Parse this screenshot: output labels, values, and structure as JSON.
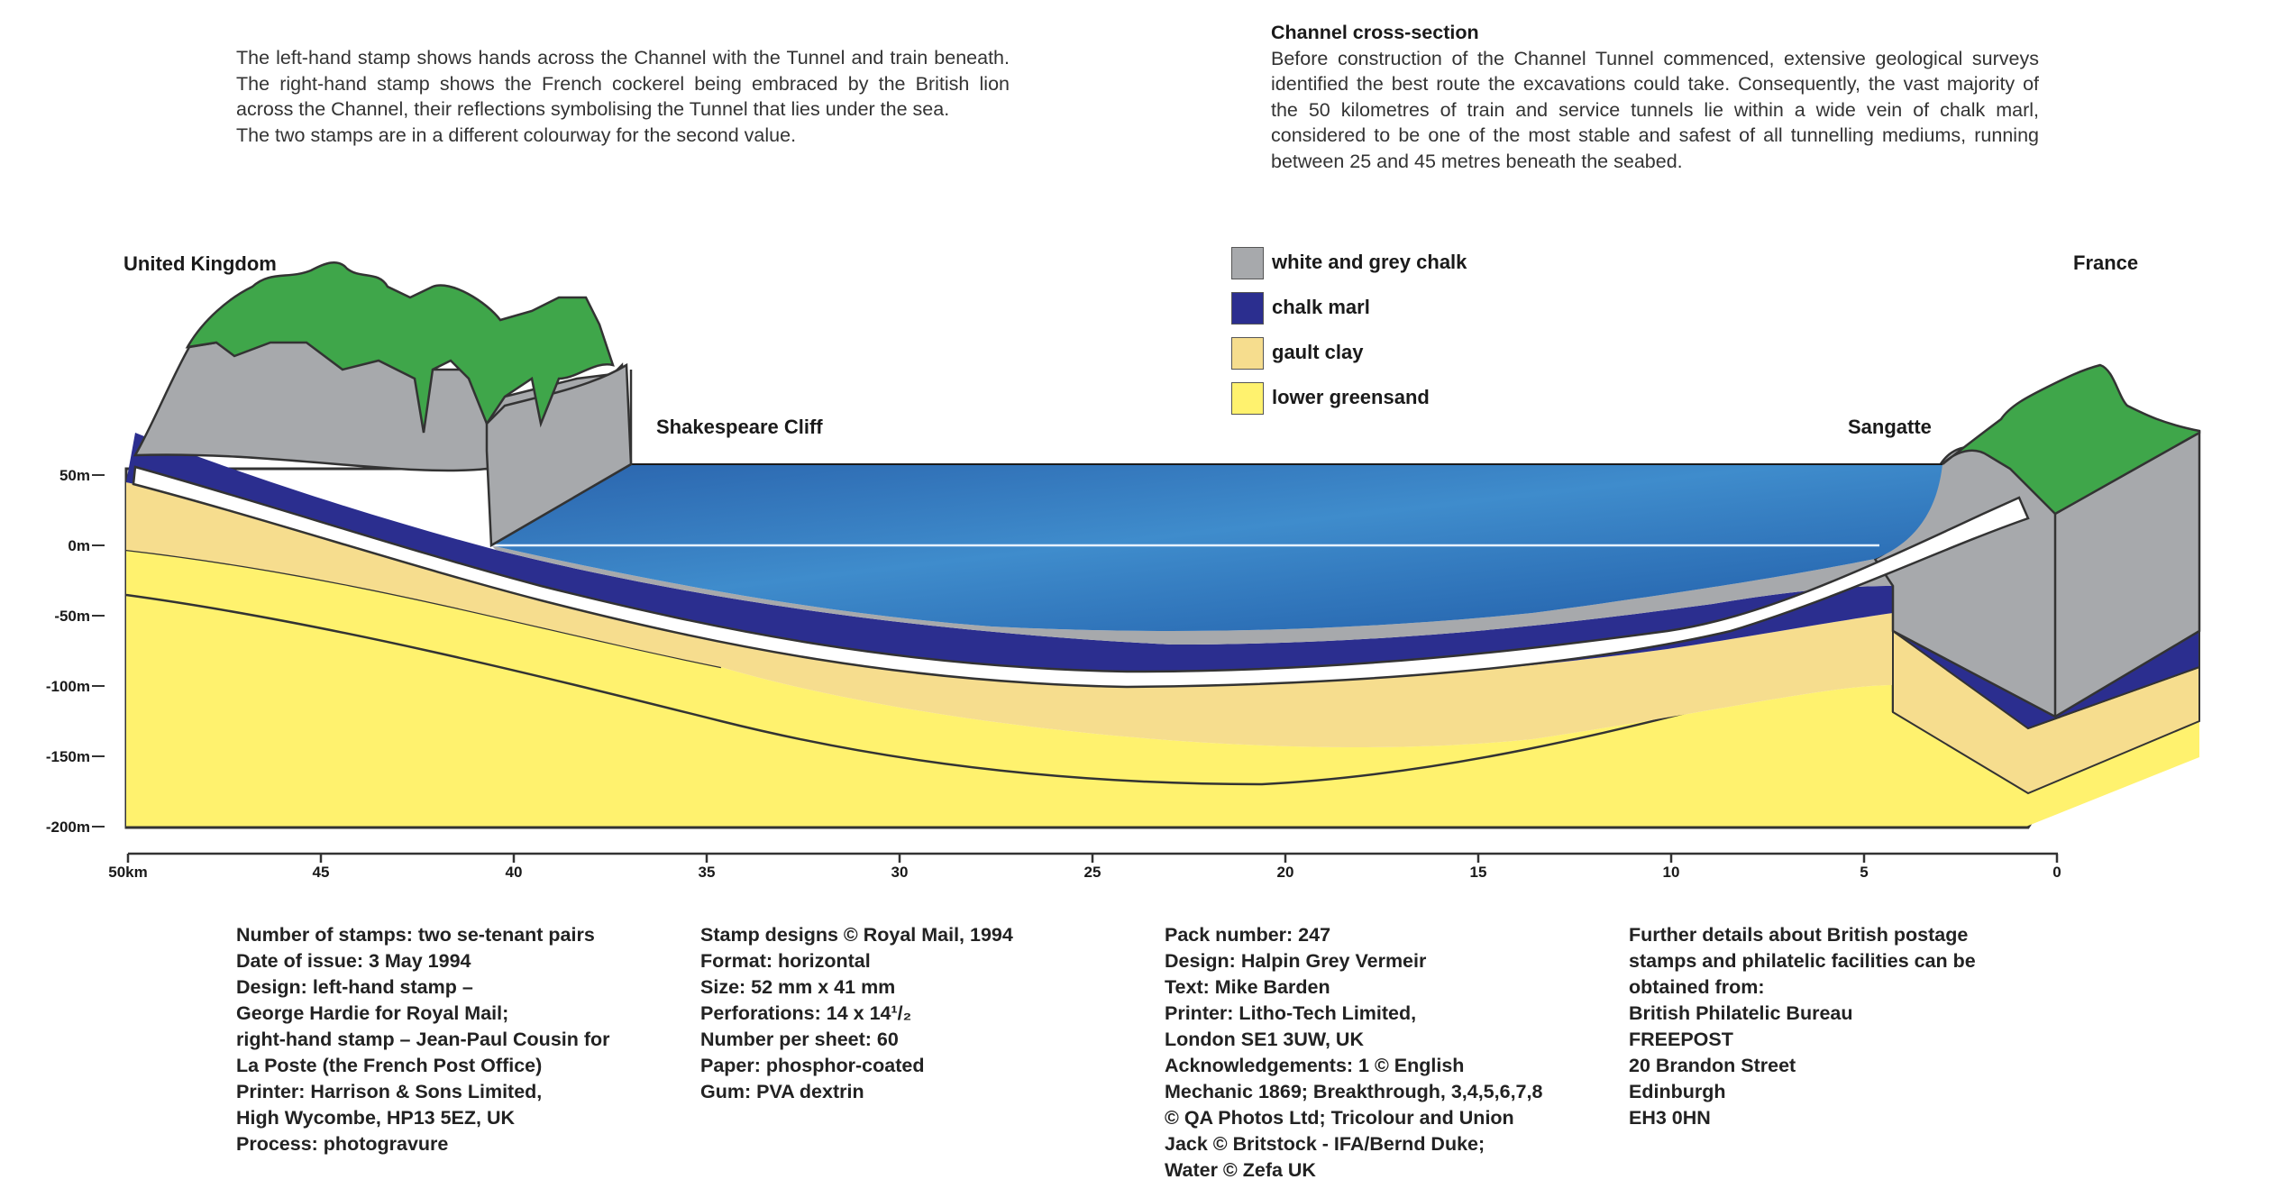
{
  "intro_left": {
    "lines": [
      "The left-hand stamp shows hands across the Channel with the Tunnel and train beneath. The right-hand stamp shows the French cockerel being embraced by the British lion across the Channel, their reflections symbolising the Tunnel that lies under the sea.",
      "The two stamps are in a different colourway for the second value."
    ]
  },
  "intro_right": {
    "heading": "Channel cross-section",
    "body": "Before construction of the Channel Tunnel commenced, extensive geological surveys identified the best route the excavations could take. Consequently, the vast majority of the 50 kilometres of train and service tunnels lie within a wide vein of chalk marl, considered to be one of the most stable and safest of all tunnelling mediums, running between 25 and 45 metres beneath the seabed."
  },
  "places": {
    "uk": "United Kingdom",
    "france": "France",
    "shakespeare": "Shakespeare Cliff",
    "sangatte": "Sangatte"
  },
  "legend": [
    {
      "label": "white and grey chalk",
      "color": "#a7a9ac"
    },
    {
      "label": "chalk marl",
      "color": "#2b2e8f"
    },
    {
      "label": "gault clay",
      "color": "#f6dd8e"
    },
    {
      "label": "lower greensand",
      "color": "#fff26e"
    }
  ],
  "depth_axis": {
    "labels": [
      "50m",
      "0m",
      "-50m",
      "-100m",
      "-150m",
      "-200m"
    ]
  },
  "distance_axis": {
    "labels": [
      "50km",
      "45",
      "40",
      "35",
      "30",
      "25",
      "20",
      "15",
      "10",
      "5",
      "0"
    ]
  },
  "colors": {
    "chalk": "#a7a9ac",
    "marl": "#2b2e8f",
    "gault": "#f6dd8e",
    "greensand": "#fff26e",
    "land": "#3fa64a",
    "sea": "#2f73b8"
  },
  "info_columns": [
    [
      "Number of stamps: two se-tenant pairs",
      "Date of issue: 3 May 1994",
      "Design: left-hand stamp –",
      "George Hardie for Royal Mail;",
      "right-hand stamp – Jean-Paul Cousin for",
      "La Poste (the French Post Office)",
      "Printer: Harrison & Sons Limited,",
      "High Wycombe, HP13 5EZ, UK",
      "Process: photogravure"
    ],
    [
      "Stamp designs © Royal Mail, 1994",
      "Format: horizontal",
      "Size: 52 mm x 41 mm",
      "Perforations: 14 x 14¹/₂",
      "Number per sheet: 60",
      "Paper: phosphor-coated",
      "Gum: PVA dextrin"
    ],
    [
      "Pack number: 247",
      "Design: Halpin Grey Vermeir",
      "Text: Mike Barden",
      "Printer: Litho-Tech Limited,",
      "London SE1 3UW, UK",
      "Acknowledgements: 1 © English",
      "Mechanic 1869; Breakthrough, 3,4,5,6,7,8",
      "© QA Photos Ltd; Tricolour and Union",
      "Jack © Britstock - IFA/Bernd Duke;",
      "Water © Zefa UK"
    ],
    [
      "Further details about British postage",
      "stamps and philatelic facilities can be",
      "obtained from:",
      "British Philatelic Bureau",
      "FREEPOST",
      "20 Brandon Street",
      "Edinburgh",
      "EH3 0HN"
    ]
  ]
}
